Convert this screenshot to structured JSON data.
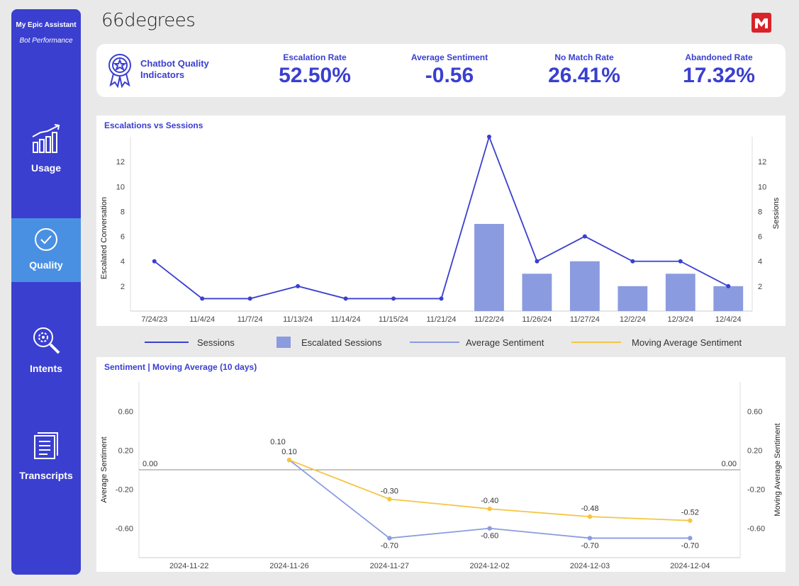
{
  "sidebar": {
    "title": "My Epic Assistant",
    "subtitle": "Bot Performance",
    "items": [
      {
        "label": "Usage",
        "icon": "bar-chart-icon"
      },
      {
        "label": "Quality",
        "icon": "check-circle-icon"
      },
      {
        "label": "Intents",
        "icon": "gear-search-icon"
      },
      {
        "label": "Transcripts",
        "icon": "document-icon"
      }
    ],
    "active": "Quality"
  },
  "header": {
    "brand": "66degrees",
    "logo_icon": "m-logo-icon"
  },
  "kpis": {
    "heading": "Chatbot Quality Indicators",
    "icon": "award-ribbon-icon",
    "items": [
      {
        "label": "Escalation Rate",
        "value": "52.50%"
      },
      {
        "label": "Average Sentiment",
        "value": "-0.56"
      },
      {
        "label": "No Match Rate",
        "value": "26.41%"
      },
      {
        "label": "Abandoned Rate",
        "value": "17.32%"
      }
    ]
  },
  "colors": {
    "primary": "#3a3fd0",
    "bar": "#8b9be0",
    "sentiment_line": "#8b9be0",
    "moving_avg": "#f5c542",
    "active_nav": "#4a90e2"
  },
  "chart_data": [
    {
      "type": "bar",
      "title": "Escalations vs Sessions",
      "ylabel": "Escalated Conversation",
      "y2label": "Sessions",
      "categories": [
        "7/24/23",
        "11/4/24",
        "11/7/24",
        "11/13/24",
        "11/14/24",
        "11/15/24",
        "11/21/24",
        "11/22/24",
        "11/26/24",
        "11/27/24",
        "12/2/24",
        "12/3/24",
        "12/4/24"
      ],
      "ylim": [
        0,
        14
      ],
      "yticks": [
        2,
        4,
        6,
        8,
        10,
        12
      ],
      "series": [
        {
          "name": "Sessions",
          "type": "line",
          "values": [
            4,
            1,
            1,
            2,
            1,
            1,
            1,
            14,
            4,
            6,
            4,
            4,
            2
          ]
        },
        {
          "name": "Escalated Sessions",
          "type": "bar",
          "values": [
            0,
            0,
            0,
            0,
            0,
            0,
            0,
            7,
            3,
            4,
            2,
            3,
            2
          ]
        }
      ]
    },
    {
      "type": "line",
      "title": "Sentiment | Moving Average (10 days)",
      "ylabel": "Average Sentiment",
      "y2label": "Moving Average Sentiment",
      "categories": [
        "2024-11-22",
        "2024-11-26",
        "2024-11-27",
        "2024-12-02",
        "2024-12-03",
        "2024-12-04"
      ],
      "ylim": [
        -0.9,
        0.9
      ],
      "yticks": [
        "0.60",
        "0.20",
        "-0.20",
        "-0.60"
      ],
      "reference_line": {
        "value": 0,
        "label": "0.00"
      },
      "series": [
        {
          "name": "Average Sentiment",
          "values": [
            null,
            0.1,
            -0.7,
            -0.6,
            -0.7,
            -0.7
          ],
          "labels": [
            "",
            "0.10",
            "-0.70",
            "-0.60",
            "-0.70",
            "-0.70"
          ]
        },
        {
          "name": "Moving Average Sentiment",
          "values": [
            null,
            0.1,
            -0.3,
            -0.4,
            -0.48,
            -0.52
          ],
          "labels": [
            "",
            "0.10",
            "-0.30",
            "-0.40",
            "-0.48",
            "-0.52"
          ]
        }
      ]
    }
  ],
  "legend": [
    "Sessions",
    "Escalated Sessions",
    "Average Sentiment",
    "Moving Average Sentiment"
  ]
}
